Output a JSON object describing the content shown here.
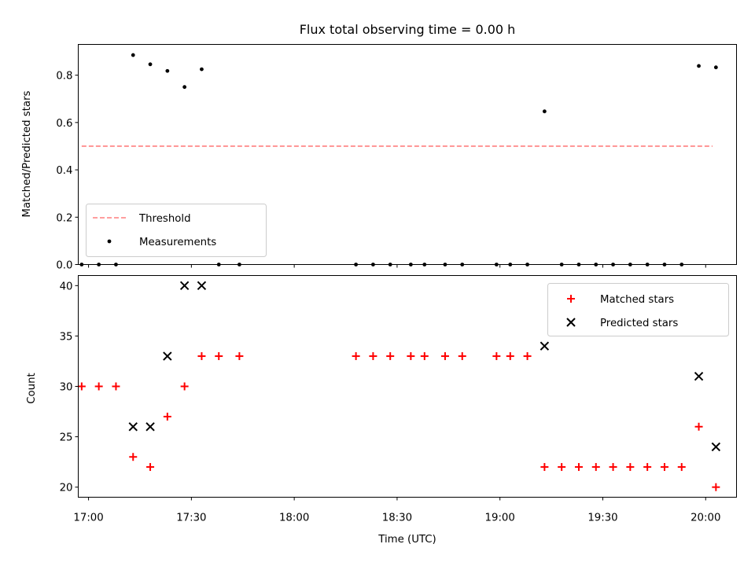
{
  "chart_data": [
    {
      "type": "scatter",
      "title": "Flux total observing time = 0.00 h",
      "xlabel": "",
      "ylabel": "Matched/Predicted stars",
      "ylim": [
        0,
        0.93
      ],
      "yticks": [
        0.0,
        0.2,
        0.4,
        0.6,
        0.8
      ],
      "ytick_labels": [
        "0.0",
        "0.2",
        "0.4",
        "0.6",
        "0.8"
      ],
      "legend_placement": "lower-left",
      "threshold": {
        "name": "Threshold",
        "value": 0.5,
        "x_range": [
          "16:58",
          "20:02"
        ],
        "color": "#ff7f7f",
        "style": "dashed"
      },
      "series": [
        {
          "name": "Measurements",
          "color": "#000000",
          "marker": "dot",
          "points": [
            {
              "x": "16:58",
              "y": 0.0
            },
            {
              "x": "17:03",
              "y": 0.0
            },
            {
              "x": "17:08",
              "y": 0.0
            },
            {
              "x": "17:13",
              "y": 0.885
            },
            {
              "x": "17:18",
              "y": 0.846
            },
            {
              "x": "17:23",
              "y": 0.818
            },
            {
              "x": "17:28",
              "y": 0.75
            },
            {
              "x": "17:33",
              "y": 0.825
            },
            {
              "x": "17:38",
              "y": 0.0
            },
            {
              "x": "17:44",
              "y": 0.0
            },
            {
              "x": "18:18",
              "y": 0.0
            },
            {
              "x": "18:23",
              "y": 0.0
            },
            {
              "x": "18:28",
              "y": 0.0
            },
            {
              "x": "18:34",
              "y": 0.0
            },
            {
              "x": "18:38",
              "y": 0.0
            },
            {
              "x": "18:44",
              "y": 0.0
            },
            {
              "x": "18:49",
              "y": 0.0
            },
            {
              "x": "18:59",
              "y": 0.0
            },
            {
              "x": "19:03",
              "y": 0.0
            },
            {
              "x": "19:08",
              "y": 0.0
            },
            {
              "x": "19:13",
              "y": 0.647
            },
            {
              "x": "19:18",
              "y": 0.0
            },
            {
              "x": "19:23",
              "y": 0.0
            },
            {
              "x": "19:28",
              "y": 0.0
            },
            {
              "x": "19:33",
              "y": 0.0
            },
            {
              "x": "19:38",
              "y": 0.0
            },
            {
              "x": "19:43",
              "y": 0.0
            },
            {
              "x": "19:48",
              "y": 0.0
            },
            {
              "x": "19:53",
              "y": 0.0
            },
            {
              "x": "19:58",
              "y": 0.839
            },
            {
              "x": "20:03",
              "y": 0.833
            }
          ]
        }
      ]
    },
    {
      "type": "scatter",
      "title": "",
      "xlabel": "Time (UTC)",
      "ylabel": "Count",
      "ylim": [
        19,
        41
      ],
      "yticks": [
        20,
        25,
        30,
        35,
        40
      ],
      "ytick_labels": [
        "20",
        "25",
        "30",
        "35",
        "40"
      ],
      "xlim": [
        "16:57",
        "20:09"
      ],
      "xticks": [
        "17:00",
        "17:30",
        "18:00",
        "18:30",
        "19:00",
        "19:30",
        "20:00"
      ],
      "xtick_labels": [
        "17:00",
        "17:30",
        "18:00",
        "18:30",
        "19:00",
        "19:30",
        "20:00"
      ],
      "legend_placement": "upper-right",
      "series": [
        {
          "name": "Matched stars",
          "color": "#ff0000",
          "marker": "plus",
          "points": [
            {
              "x": "16:58",
              "y": 30
            },
            {
              "x": "17:03",
              "y": 30
            },
            {
              "x": "17:08",
              "y": 30
            },
            {
              "x": "17:13",
              "y": 23
            },
            {
              "x": "17:18",
              "y": 22
            },
            {
              "x": "17:23",
              "y": 27
            },
            {
              "x": "17:28",
              "y": 30
            },
            {
              "x": "17:33",
              "y": 33
            },
            {
              "x": "17:38",
              "y": 33
            },
            {
              "x": "17:44",
              "y": 33
            },
            {
              "x": "18:18",
              "y": 33
            },
            {
              "x": "18:23",
              "y": 33
            },
            {
              "x": "18:28",
              "y": 33
            },
            {
              "x": "18:34",
              "y": 33
            },
            {
              "x": "18:38",
              "y": 33
            },
            {
              "x": "18:44",
              "y": 33
            },
            {
              "x": "18:49",
              "y": 33
            },
            {
              "x": "18:59",
              "y": 33
            },
            {
              "x": "19:03",
              "y": 33
            },
            {
              "x": "19:08",
              "y": 33
            },
            {
              "x": "19:13",
              "y": 22
            },
            {
              "x": "19:18",
              "y": 22
            },
            {
              "x": "19:23",
              "y": 22
            },
            {
              "x": "19:28",
              "y": 22
            },
            {
              "x": "19:33",
              "y": 22
            },
            {
              "x": "19:38",
              "y": 22
            },
            {
              "x": "19:43",
              "y": 22
            },
            {
              "x": "19:48",
              "y": 22
            },
            {
              "x": "19:53",
              "y": 22
            },
            {
              "x": "19:58",
              "y": 26
            },
            {
              "x": "20:03",
              "y": 20
            }
          ]
        },
        {
          "name": "Predicted stars",
          "color": "#000000",
          "marker": "x",
          "points": [
            {
              "x": "17:13",
              "y": 26
            },
            {
              "x": "17:18",
              "y": 26
            },
            {
              "x": "17:23",
              "y": 33
            },
            {
              "x": "17:28",
              "y": 40
            },
            {
              "x": "17:33",
              "y": 40
            },
            {
              "x": "19:13",
              "y": 34
            },
            {
              "x": "19:58",
              "y": 31
            },
            {
              "x": "20:03",
              "y": 24
            }
          ]
        }
      ]
    }
  ]
}
